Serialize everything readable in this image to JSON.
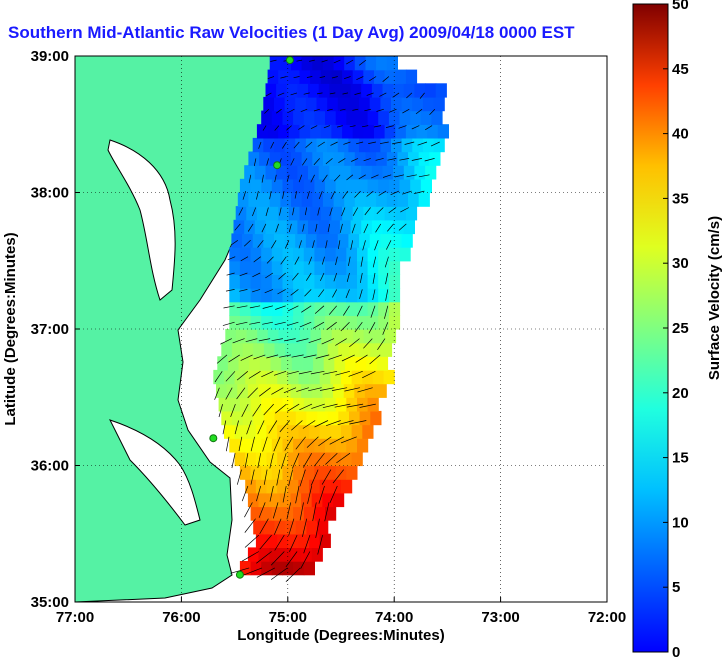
{
  "chart_data": {
    "type": "heatmap",
    "title": "Southern Mid-Atlantic Raw Velocities (1 Day Avg) 2009/04/18 0000 EST",
    "xlabel": "Longitude (Degrees:Minutes)",
    "ylabel": "Latitude (Degrees:Minutes)",
    "colorbar_label": "Surface Velocity (cm/s)",
    "xlim": [
      -77,
      -72
    ],
    "ylim": [
      35,
      39
    ],
    "x_ticks": [
      {
        "value": -77,
        "label": "77:00"
      },
      {
        "value": -76,
        "label": "76:00"
      },
      {
        "value": -75,
        "label": "75:00"
      },
      {
        "value": -74,
        "label": "74:00"
      },
      {
        "value": -73,
        "label": "73:00"
      },
      {
        "value": -72,
        "label": "72:00"
      }
    ],
    "y_ticks": [
      {
        "value": 35,
        "label": "35:00"
      },
      {
        "value": 36,
        "label": "36:00"
      },
      {
        "value": 37,
        "label": "37:00"
      },
      {
        "value": 38,
        "label": "38:00"
      },
      {
        "value": 39,
        "label": "39:00"
      }
    ],
    "grid": true,
    "color_range": [
      0,
      50
    ],
    "colorbar_ticks": [
      0,
      5,
      10,
      15,
      20,
      25,
      30,
      35,
      40,
      45,
      50
    ],
    "colormap": "jet",
    "land_color": "#55f2a4",
    "title_color": "#1a1aff",
    "station_color": "#22dd22",
    "velocity_field": {
      "lon_range": [
        -75.4,
        -73.4
      ],
      "lat_range": [
        35.2,
        39.0
      ],
      "max_speed": 48,
      "regions": [
        {
          "region": "north (38.5-39.0)",
          "speed": 6
        },
        {
          "region": "central (37.2-38.2)",
          "speed": 12
        },
        {
          "region": "south (36.2-36.8)",
          "speed": 30
        },
        {
          "region": "south shelf edge (35.2-36.0)",
          "speed": 42
        }
      ]
    }
  }
}
